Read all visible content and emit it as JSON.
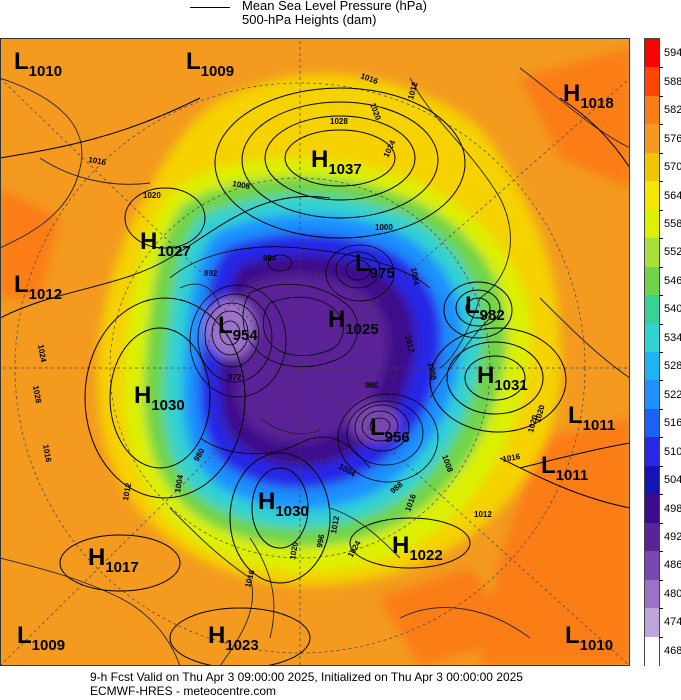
{
  "legend": {
    "line1": "Mean Sea Level Pressure (hPa)",
    "line2": "500-hPa Heights (dam)"
  },
  "colorbar": {
    "labels": [
      "594",
      "588",
      "582",
      "576",
      "570",
      "564",
      "558",
      "552",
      "546",
      "540",
      "534",
      "528",
      "522",
      "516",
      "510",
      "504",
      "498",
      "492",
      "486",
      "480",
      "474",
      "468"
    ],
    "colors": [
      "#ff0000",
      "#ff4500",
      "#fb7d16",
      "#f39a1f",
      "#f2c500",
      "#f5e600",
      "#dcf000",
      "#a8e03a",
      "#6fd449",
      "#39d196",
      "#30d2d2",
      "#1fb4f0",
      "#1e90ff",
      "#1e62f5",
      "#2828e6",
      "#1414b4",
      "#3c0a8c",
      "#5a2496",
      "#7a46b0",
      "#9c72c8",
      "#c0a4dc",
      "#ffffff"
    ]
  },
  "centers": [
    {
      "letter": "L",
      "value": "1010"
    },
    {
      "letter": "L",
      "value": "1009"
    },
    {
      "letter": "H",
      "value": "1018"
    },
    {
      "letter": "H",
      "value": "1037"
    },
    {
      "letter": "H",
      "value": "1027"
    },
    {
      "letter": "L",
      "value": "1012"
    },
    {
      "letter": "L",
      "value": "975"
    },
    {
      "letter": "L",
      "value": "982"
    },
    {
      "letter": "L",
      "value": "954"
    },
    {
      "letter": "H",
      "value": "1025"
    },
    {
      "letter": "H",
      "value": "1031"
    },
    {
      "letter": "H",
      "value": "1030"
    },
    {
      "letter": "L",
      "value": "1011"
    },
    {
      "letter": "L",
      "value": "1011"
    },
    {
      "letter": "L",
      "value": "956"
    },
    {
      "letter": "H",
      "value": "1030"
    },
    {
      "letter": "H",
      "value": "1022"
    },
    {
      "letter": "H",
      "value": "1017"
    },
    {
      "letter": "L",
      "value": "1009"
    },
    {
      "letter": "H",
      "value": "1023"
    },
    {
      "letter": "L",
      "value": "1010"
    }
  ],
  "contour_labels": [
    "1016",
    "1012",
    "1020",
    "1028",
    "1024",
    "1016",
    "1008",
    "1000",
    "1020",
    "1024",
    "1028",
    "984",
    "1004",
    "992",
    "972",
    "980",
    "1008",
    "1012",
    "1016",
    "1004",
    "988",
    "980",
    "1012",
    "1008",
    "1016",
    "1020",
    "1012",
    "1016",
    "1020",
    "996",
    "1004",
    "1012",
    "1016",
    "1024",
    "1020"
  ],
  "footer": {
    "line1": "9-h Fcst Valid on Thu Apr  3 09:00:00 2025, Initialized on Thu Apr  3 00:00:00 2025",
    "line2": "ECMWF-HRES  - meteocentre.com"
  }
}
